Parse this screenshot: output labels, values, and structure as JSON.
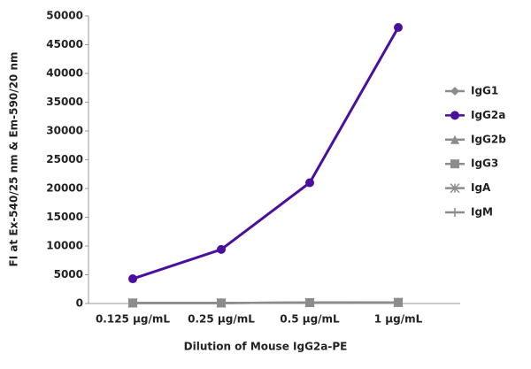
{
  "chart_data": {
    "type": "line",
    "x_label": "Dilution of Mouse IgG2a-PE",
    "y_label": "FI at Ex-540/25 nm & Em-590/20 nm",
    "categories": [
      "0.125 µg/mL",
      "0.25 µg/mL",
      "0.5 µg/mL",
      "1 µg/mL"
    ],
    "series": [
      {
        "name": "IgG1",
        "color": "#8c8c8c",
        "marker": "diamond",
        "values": [
          100,
          100,
          150,
          200
        ]
      },
      {
        "name": "IgG2a",
        "color": "#4a0f9e",
        "marker": "circle",
        "values": [
          4300,
          9400,
          21000,
          48000
        ]
      },
      {
        "name": "IgG2b",
        "color": "#8c8c8c",
        "marker": "triangle",
        "values": [
          100,
          100,
          150,
          200
        ]
      },
      {
        "name": "IgG3",
        "color": "#8c8c8c",
        "marker": "square",
        "values": [
          100,
          100,
          150,
          200
        ]
      },
      {
        "name": "IgA",
        "color": "#8c8c8c",
        "marker": "asterisk",
        "values": [
          100,
          100,
          150,
          200
        ]
      },
      {
        "name": "IgM",
        "color": "#8c8c8c",
        "marker": "plus",
        "values": [
          100,
          100,
          150,
          200
        ]
      }
    ],
    "ylim": [
      0,
      50000
    ],
    "yticks": [
      0,
      5000,
      10000,
      15000,
      20000,
      25000,
      30000,
      35000,
      40000,
      45000,
      50000
    ],
    "grid": false
  }
}
